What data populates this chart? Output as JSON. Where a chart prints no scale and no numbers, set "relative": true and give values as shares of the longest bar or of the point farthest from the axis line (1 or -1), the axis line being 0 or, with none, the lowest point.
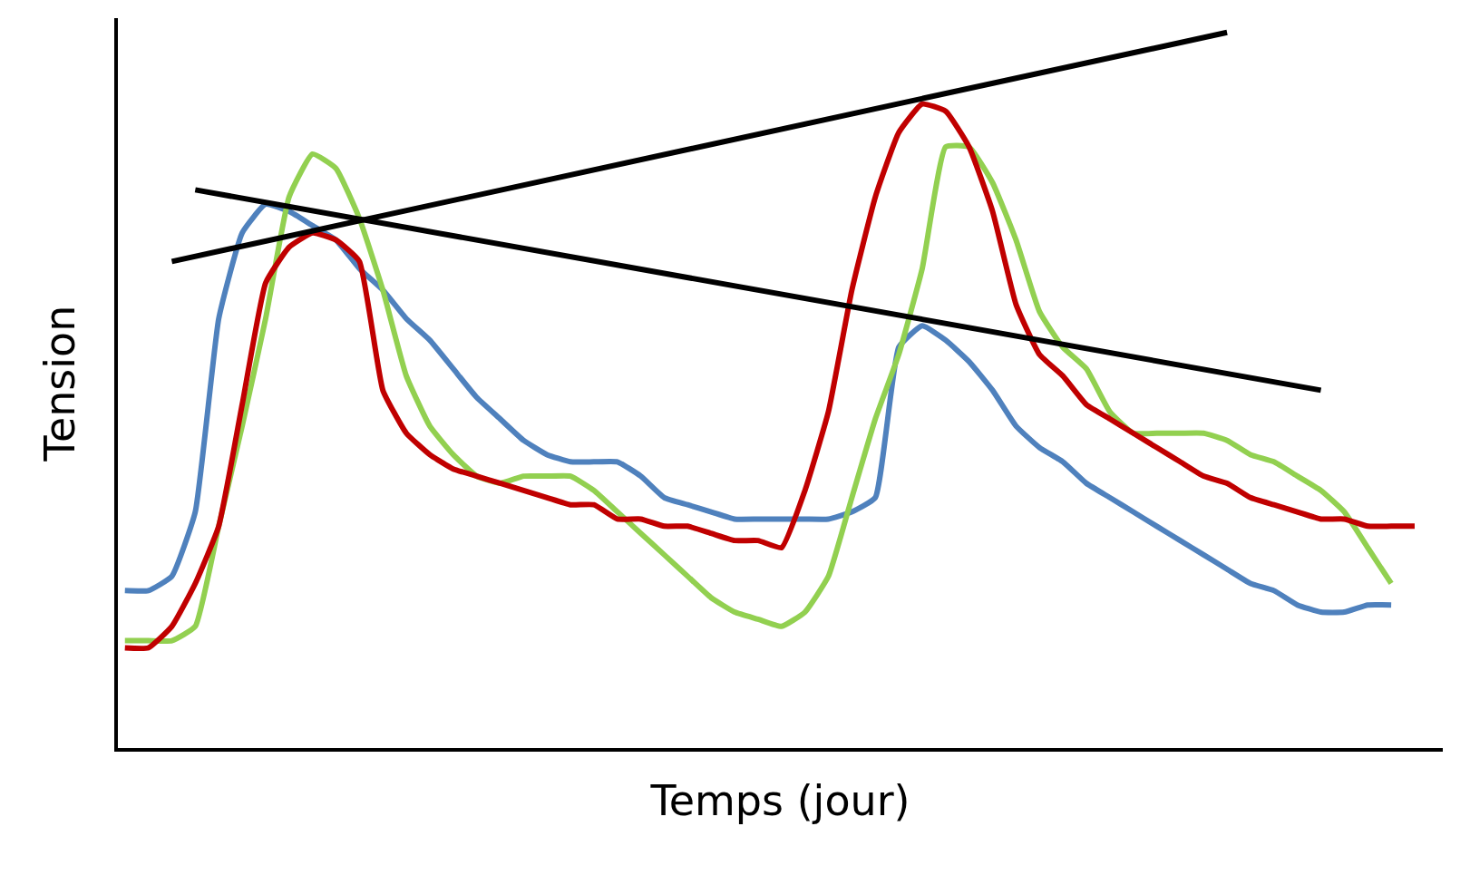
{
  "chart_data": {
    "type": "line",
    "relative": true,
    "xlabel": "Temps (jour)",
    "ylabel": "Tension",
    "tick_labels": false,
    "marker": "none",
    "line_style": "solid",
    "categories": [
      null,
      null,
      null,
      null,
      null,
      null,
      null,
      null,
      null,
      null,
      null,
      null,
      null,
      null,
      null,
      null,
      null,
      null,
      null,
      null,
      null,
      null,
      null,
      null,
      null,
      null,
      null,
      null,
      null,
      null,
      null,
      null,
      null,
      null,
      null,
      null,
      null,
      null,
      null,
      null,
      null,
      null,
      null,
      null,
      null,
      null,
      null,
      null,
      null,
      null,
      null,
      null,
      null,
      null,
      null,
      null
    ],
    "series": [
      {
        "color": "#4f81bd",
        "values": [
          0.22,
          0.22,
          0.24,
          0.33,
          0.6,
          0.72,
          0.76,
          0.75,
          0.73,
          0.71,
          0.67,
          0.64,
          0.6,
          0.57,
          0.53,
          0.49,
          0.46,
          0.43,
          0.41,
          0.4,
          0.4,
          0.4,
          0.38,
          0.35,
          0.34,
          0.33,
          0.32,
          0.32,
          0.32,
          0.32,
          0.32,
          0.33,
          0.35,
          0.56,
          0.59,
          0.57,
          0.54,
          0.5,
          0.45,
          0.42,
          0.4,
          0.37,
          0.35,
          0.33,
          0.31,
          0.29,
          0.27,
          0.25,
          0.23,
          0.22,
          0.2,
          0.19,
          0.19,
          0.2,
          0.2,
          null
        ]
      },
      {
        "color": "#92d050",
        "values": [
          0.15,
          0.15,
          0.15,
          0.17,
          0.31,
          0.45,
          0.6,
          0.77,
          0.83,
          0.81,
          0.74,
          0.64,
          0.52,
          0.45,
          0.41,
          0.38,
          0.37,
          0.38,
          0.38,
          0.38,
          0.36,
          0.33,
          0.3,
          0.27,
          0.24,
          0.21,
          0.19,
          0.18,
          0.17,
          0.19,
          0.24,
          0.35,
          0.46,
          0.55,
          0.67,
          0.84,
          0.84,
          0.79,
          0.71,
          0.61,
          0.56,
          0.53,
          0.47,
          0.44,
          0.44,
          0.44,
          0.44,
          0.43,
          0.41,
          0.4,
          0.38,
          0.36,
          0.33,
          0.28,
          0.23,
          null
        ]
      },
      {
        "color": "#c00000",
        "values": [
          0.14,
          0.14,
          0.17,
          0.23,
          0.31,
          0.48,
          0.65,
          0.7,
          0.72,
          0.71,
          0.68,
          0.5,
          0.44,
          0.41,
          0.39,
          0.38,
          0.37,
          0.36,
          0.35,
          0.34,
          0.34,
          0.32,
          0.32,
          0.31,
          0.31,
          0.3,
          0.29,
          0.29,
          0.28,
          0.36,
          0.47,
          0.64,
          0.77,
          0.86,
          0.9,
          0.89,
          0.84,
          0.75,
          0.62,
          0.55,
          0.52,
          0.48,
          0.46,
          0.44,
          0.42,
          0.4,
          0.38,
          0.37,
          0.35,
          0.34,
          0.33,
          0.32,
          0.32,
          0.31,
          0.31,
          0.31
        ]
      },
      {
        "type": "line",
        "color": "#000000",
        "values": [
          null,
          null,
          0.68,
          null,
          null,
          null,
          null,
          null,
          null,
          null,
          null,
          null,
          null,
          null,
          null,
          null,
          null,
          null,
          null,
          null,
          null,
          null,
          null,
          null,
          null,
          null,
          null,
          null,
          null,
          null,
          null,
          null,
          null,
          null,
          null,
          null,
          null,
          null,
          null,
          null,
          null,
          null,
          null,
          null,
          null,
          null,
          null,
          1.0,
          null,
          null,
          null,
          null,
          null,
          null,
          null,
          null
        ]
      },
      {
        "type": "line",
        "color": "#000000",
        "values": [
          null,
          null,
          null,
          0.78,
          null,
          null,
          null,
          null,
          null,
          null,
          null,
          null,
          null,
          null,
          null,
          null,
          null,
          null,
          null,
          null,
          null,
          null,
          null,
          null,
          null,
          null,
          null,
          null,
          null,
          null,
          null,
          null,
          null,
          null,
          null,
          null,
          null,
          null,
          null,
          null,
          null,
          null,
          null,
          null,
          null,
          null,
          null,
          null,
          null,
          null,
          null,
          0.5,
          null,
          null,
          null,
          null
        ]
      }
    ]
  }
}
